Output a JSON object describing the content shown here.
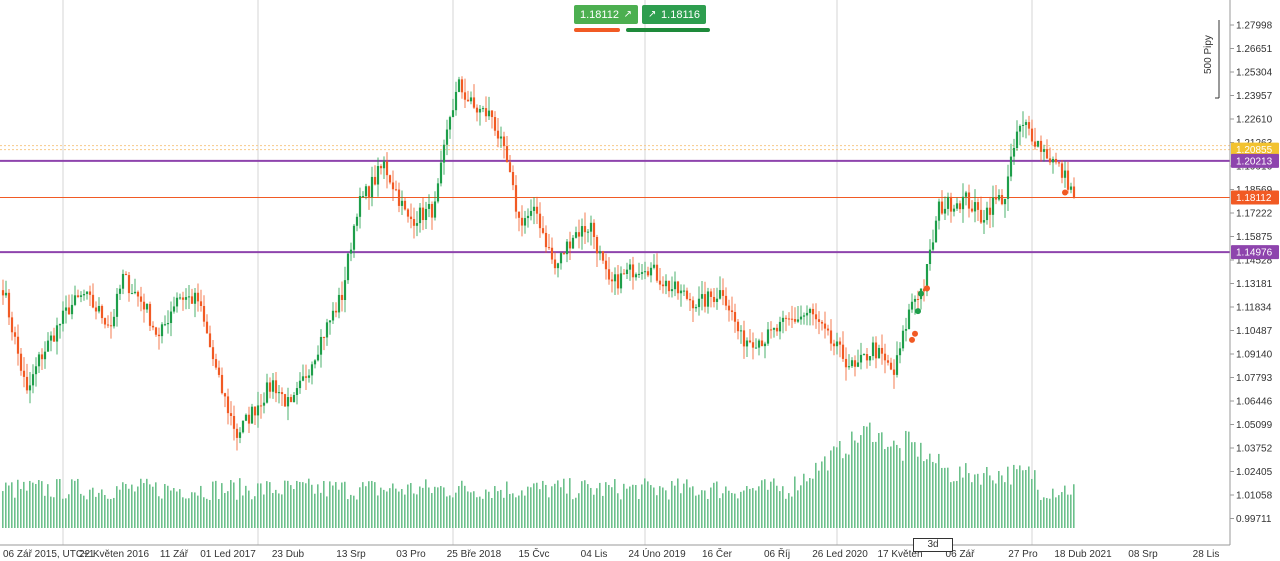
{
  "trade": {
    "sell_price": "1.18112",
    "buy_price": "1.18116",
    "sell_icon": "arrow-up-right-icon",
    "buy_icon": "arrow-up-right-icon"
  },
  "scale_note": "500 Pipy",
  "zoom_badge": "3d",
  "colors": {
    "up": "#1e9e4a",
    "down": "#f15a24",
    "purple": "#8e44ad",
    "orange": "#f15a24",
    "yellow": "#f2c230",
    "volume": "#6cc08b",
    "grid": "#d5d5d5"
  },
  "chart_data": {
    "type": "candlestick",
    "title": "",
    "xlabel": "",
    "ylabel": "",
    "ylim": [
      0.98,
      1.289
    ],
    "y_ticks": [
      "1.27998",
      "1.26651",
      "1.25304",
      "1.23957",
      "1.22610",
      "1.21263",
      "1.19916",
      "1.18569",
      "1.17222",
      "1.15875",
      "1.14528",
      "1.13181",
      "1.11834",
      "1.10487",
      "1.09140",
      "1.07793",
      "1.06446",
      "1.05099",
      "1.03752",
      "1.02405",
      "1.01058",
      "0.99711"
    ],
    "x_labels": [
      "06 Zář 2015, UTC+1",
      "22 Květen 2016",
      "11 Zář",
      "01 Led 2017",
      "23 Dub",
      "13 Srp",
      "03 Pro",
      "25 Bře 2018",
      "15 Čvc",
      "04 Lis",
      "24 Úno 2019",
      "16 Čer",
      "06 Říj",
      "26 Led 2020",
      "17 Květen",
      "06 Zář",
      "27 Pro",
      "18 Dub 2021",
      "08 Srp",
      "28 Lis"
    ],
    "x_label_index": [
      0,
      37,
      57,
      75,
      95,
      116,
      136,
      157,
      177,
      197,
      218,
      238,
      258,
      279,
      299,
      319,
      340,
      360,
      380,
      401
    ],
    "vlines_index": [
      20,
      85,
      150,
      214,
      278,
      343
    ],
    "levels": [
      {
        "value": 1.20213,
        "label": "1.20213",
        "color": "#8e44ad"
      },
      {
        "value": 1.14976,
        "label": "1.14976",
        "color": "#8e44ad"
      }
    ],
    "current_price": {
      "value": 1.18112,
      "label": "1.18112",
      "color": "#f15a24"
    },
    "marker_level": {
      "value": 1.20855,
      "label": "1.20855",
      "color": "#f2c230"
    },
    "anchors": [
      [
        0,
        1.13
      ],
      [
        8,
        1.068
      ],
      [
        12,
        1.088
      ],
      [
        22,
        1.118
      ],
      [
        27,
        1.125
      ],
      [
        36,
        1.108
      ],
      [
        40,
        1.135
      ],
      [
        47,
        1.12
      ],
      [
        52,
        1.1
      ],
      [
        58,
        1.125
      ],
      [
        65,
        1.122
      ],
      [
        72,
        1.075
      ],
      [
        78,
        1.045
      ],
      [
        83,
        1.058
      ],
      [
        90,
        1.075
      ],
      [
        96,
        1.06
      ],
      [
        106,
        1.1
      ],
      [
        113,
        1.125
      ],
      [
        118,
        1.175
      ],
      [
        127,
        1.2
      ],
      [
        131,
        1.185
      ],
      [
        135,
        1.168
      ],
      [
        144,
        1.175
      ],
      [
        149,
        1.228
      ],
      [
        152,
        1.245
      ],
      [
        157,
        1.232
      ],
      [
        163,
        1.228
      ],
      [
        168,
        1.2
      ],
      [
        172,
        1.168
      ],
      [
        178,
        1.172
      ],
      [
        184,
        1.14
      ],
      [
        190,
        1.16
      ],
      [
        196,
        1.165
      ],
      [
        202,
        1.13
      ],
      [
        210,
        1.14
      ],
      [
        214,
        1.143
      ],
      [
        222,
        1.13
      ],
      [
        232,
        1.12
      ],
      [
        240,
        1.128
      ],
      [
        246,
        1.1
      ],
      [
        254,
        1.1
      ],
      [
        262,
        1.11
      ],
      [
        269,
        1.115
      ],
      [
        275,
        1.1
      ],
      [
        284,
        1.082
      ],
      [
        290,
        1.095
      ],
      [
        297,
        1.08
      ],
      [
        303,
        1.122
      ],
      [
        307,
        1.13
      ],
      [
        312,
        1.175
      ],
      [
        316,
        1.178
      ],
      [
        321,
        1.18
      ],
      [
        326,
        1.17
      ],
      [
        330,
        1.178
      ],
      [
        334,
        1.182
      ],
      [
        338,
        1.218
      ],
      [
        341,
        1.222
      ],
      [
        346,
        1.21
      ],
      [
        351,
        1.2
      ],
      [
        355,
        1.19
      ],
      [
        357,
        1.181
      ]
    ],
    "volume_peak_index": 289,
    "last_index": 357
  }
}
